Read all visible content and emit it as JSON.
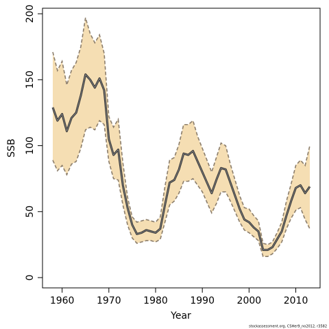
{
  "chart_data": {
    "type": "line",
    "xlabel": "Year",
    "ylabel": "SSB",
    "footnote": "stockassessment.org, CSHer9_no2012, r3582",
    "x": [
      1958,
      1959,
      1960,
      1961,
      1962,
      1963,
      1964,
      1965,
      1966,
      1967,
      1968,
      1969,
      1970,
      1971,
      1972,
      1973,
      1974,
      1975,
      1976,
      1977,
      1978,
      1979,
      1980,
      1981,
      1982,
      1983,
      1984,
      1985,
      1986,
      1987,
      1988,
      1989,
      1990,
      1991,
      1992,
      1993,
      1994,
      1995,
      1996,
      1997,
      1998,
      1999,
      2000,
      2001,
      2002,
      2003,
      2004,
      2005,
      2006,
      2007,
      2008,
      2009,
      2010,
      2011,
      2012,
      2013
    ],
    "values": [
      129,
      119,
      124,
      111,
      121,
      125,
      138,
      154,
      150,
      144,
      151,
      142,
      105,
      93,
      97,
      70,
      53,
      40,
      33,
      34,
      36,
      35,
      34,
      37,
      55,
      72,
      74,
      82,
      94,
      93,
      96,
      88,
      80,
      72,
      64,
      74,
      83,
      82,
      72,
      62,
      52,
      44,
      42,
      38,
      35,
      21,
      21,
      23,
      29,
      35,
      47,
      58,
      68,
      70,
      64,
      69
    ],
    "upper": [
      171,
      157,
      164,
      146,
      157,
      163,
      175,
      197,
      185,
      178,
      184,
      170,
      122,
      114,
      120,
      87,
      61,
      46,
      42,
      43,
      44,
      43,
      42,
      46,
      69,
      89,
      91,
      101,
      116,
      116,
      119,
      107,
      98,
      89,
      80,
      91,
      102,
      100,
      86,
      74,
      62,
      53,
      52,
      47,
      43,
      26,
      25,
      27,
      34,
      42,
      58,
      71,
      85,
      89,
      85,
      100
    ],
    "lower": [
      89,
      81,
      85,
      78,
      86,
      88,
      98,
      112,
      114,
      112,
      119,
      116,
      88,
      75,
      74,
      55,
      40,
      30,
      26,
      27,
      28,
      28,
      27,
      29,
      42,
      55,
      58,
      64,
      73,
      73,
      75,
      70,
      65,
      57,
      49,
      56,
      65,
      65,
      58,
      50,
      42,
      36,
      34,
      31,
      28,
      16,
      16,
      18,
      22,
      27,
      37,
      45,
      51,
      53,
      44,
      37
    ],
    "color": "#333333",
    "band_color": "#f5deb3",
    "band_edge_color": "#8b7d6b",
    "xlim": [
      1955.8,
      2015.2
    ],
    "xticks": [
      1960,
      1970,
      1980,
      1990,
      2000,
      2010
    ],
    "ylim": [
      -7.8,
      204.2
    ],
    "yticks": [
      0,
      50,
      100,
      150,
      200
    ]
  }
}
